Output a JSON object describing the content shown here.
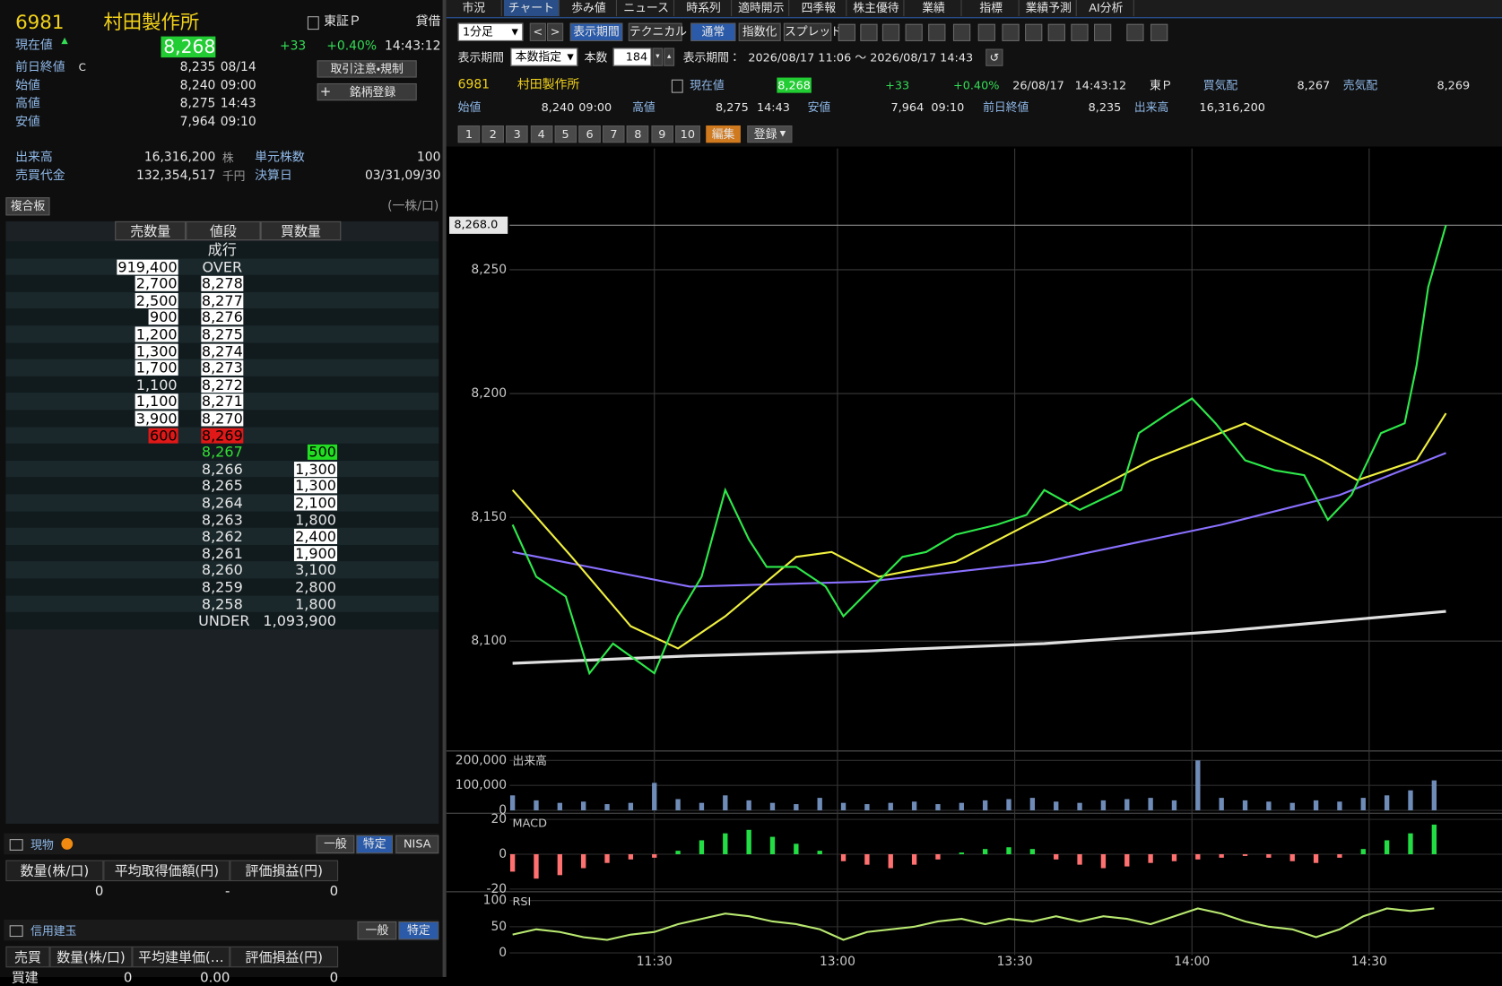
{
  "header": {
    "code": "6981",
    "name": "村田製作所",
    "market": "東証Ｐ",
    "margin_type": "貸借",
    "current_label": "現在値",
    "up_mark": "▲",
    "price": "8,268",
    "change": "+33",
    "change_pct": "+0.40%",
    "time": "14:43:12",
    "rows": [
      {
        "label": "前日終値",
        "flag": "C",
        "value": "8,235",
        "time": "08/14"
      },
      {
        "label": "始値",
        "value": "8,240",
        "time": "09:00"
      },
      {
        "label": "高値",
        "value": "8,275",
        "time": "14:43"
      },
      {
        "label": "安値",
        "value": "7,964",
        "time": "09:10"
      }
    ],
    "buttons": [
      "取引注意・規制",
      "銘柄登録"
    ]
  },
  "stats": {
    "rows": [
      {
        "label": "出来高",
        "value": "16,316,200",
        "unit": "株",
        "label2": "単元株数",
        "value2": "100"
      },
      {
        "label": "売買代金",
        "value": "132,354,517",
        "unit": "千円",
        "label2": "決算日",
        "value2": "03/31,09/30"
      }
    ]
  },
  "board": {
    "tab": "複合板",
    "note": "(一株/口)",
    "headers": [
      "売数量",
      "値段",
      "買数量"
    ],
    "rows": [
      {
        "cells": [
          null,
          "成行",
          null
        ]
      },
      {
        "cells": [
          "919,400",
          "OVER",
          null
        ],
        "bg": [
          "#ffffff",
          null,
          null
        ]
      },
      {
        "cells": [
          "2,700",
          "8,278",
          null
        ],
        "bg": [
          "#ffffff",
          "#ffffff",
          null
        ]
      },
      {
        "cells": [
          "2,500",
          "8,277",
          null
        ],
        "bg": [
          "#ffffff",
          "#ffffff",
          null
        ]
      },
      {
        "cells": [
          "900",
          "8,276",
          null
        ],
        "bg": [
          "#ffffff",
          "#ffffff",
          null
        ]
      },
      {
        "cells": [
          "1,200",
          "8,275",
          null
        ],
        "bg": [
          "#ffffff",
          "#ffffff",
          null
        ]
      },
      {
        "cells": [
          "1,300",
          "8,274",
          null
        ],
        "bg": [
          "#ffffff",
          "#ffffff",
          null
        ]
      },
      {
        "cells": [
          "1,700",
          "8,273",
          null
        ],
        "bg": [
          "#ffffff",
          "#ffffff",
          null
        ]
      },
      {
        "cells": [
          "1,100",
          "8,272",
          null
        ],
        "bg": [
          null,
          "#ffffff",
          null
        ]
      },
      {
        "cells": [
          "1,100",
          "8,271",
          null
        ],
        "bg": [
          "#ffffff",
          "#ffffff",
          null
        ]
      },
      {
        "cells": [
          "3,900",
          "8,270",
          null
        ],
        "bg": [
          "#ffffff",
          "#ffffff",
          null
        ]
      },
      {
        "cells": [
          "600",
          "8,269",
          null
        ],
        "bg": [
          "#e01818",
          "#e01818",
          null
        ]
      },
      {
        "cells": [
          null,
          "8,267",
          "500"
        ],
        "bg": [
          null,
          null,
          "#22dd22"
        ],
        "fg": [
          null,
          "#33dd33",
          null
        ]
      },
      {
        "cells": [
          null,
          "8,266",
          "1,300"
        ],
        "bg": [
          null,
          null,
          "#ffffff"
        ]
      },
      {
        "cells": [
          null,
          "8,265",
          "1,300"
        ],
        "bg": [
          null,
          null,
          "#ffffff"
        ]
      },
      {
        "cells": [
          null,
          "8,264",
          "2,100"
        ],
        "bg": [
          null,
          null,
          "#ffffff"
        ]
      },
      {
        "cells": [
          null,
          "8,263",
          "1,800"
        ]
      },
      {
        "cells": [
          null,
          "8,262",
          "2,400"
        ],
        "bg": [
          null,
          null,
          "#ffffff"
        ]
      },
      {
        "cells": [
          null,
          "8,261",
          "1,900"
        ],
        "bg": [
          null,
          null,
          "#ffffff"
        ]
      },
      {
        "cells": [
          null,
          "8,260",
          "3,100"
        ]
      },
      {
        "cells": [
          null,
          "8,259",
          "2,800"
        ]
      },
      {
        "cells": [
          null,
          "8,258",
          "1,800"
        ]
      },
      {
        "cells": [
          null,
          "UNDER",
          "1,093,900"
        ]
      }
    ]
  },
  "holdings": {
    "title": "現物",
    "tabs": [
      "一般",
      "特定",
      "NISA"
    ],
    "active": 1,
    "headers": [
      "数量(株/口)",
      "平均取得価額(円)",
      "評価損益(円)"
    ],
    "row": [
      "0",
      "-",
      "0"
    ]
  },
  "margin_positions": {
    "title": "信用建玉",
    "tabs": [
      "一般",
      "特定"
    ],
    "active": 1,
    "headers": [
      "売買",
      "数量(株/口)",
      "平均建単価(…",
      "評価損益(円)"
    ],
    "row": [
      "買建",
      "0",
      "0.00",
      "0"
    ]
  },
  "tabs": {
    "items": [
      "市況",
      "チャート",
      "歩み値",
      "ニュース",
      "時系列",
      "適時開示",
      "四季報",
      "株主優待",
      "業績",
      "指標",
      "業績予測",
      "AI分析"
    ],
    "active": 1
  },
  "toolbar": {
    "interval": "1分足",
    "buttons": [
      "表示期間",
      "テクニカル",
      "通常",
      "指数化",
      "スプレッド"
    ],
    "active": [
      0,
      2
    ]
  },
  "period": {
    "label": "表示期間",
    "mode": "本数指定",
    "count_label": "本数",
    "count": "184",
    "range_label": "表示期間：",
    "range": "2026/08/17 11:06 ～ 2026/08/17 14:43"
  },
  "quote": {
    "code": "6981",
    "name": "村田製作所",
    "current_label": "現在値",
    "price": "8,268",
    "change": "+33",
    "change_pct": "+0.40%",
    "date": "26/08/17",
    "time": "14:43:12",
    "market": "東Ｐ",
    "bid_label": "買気配",
    "bid": "8,267",
    "ask_label": "売気配",
    "ask": "8,269",
    "rows": [
      {
        "label": "始値",
        "value": "8,240",
        "time": "09:00"
      },
      {
        "label": "高値",
        "value": "8,275",
        "time": "14:43"
      },
      {
        "label": "安値",
        "value": "7,964",
        "time": "09:10"
      },
      {
        "label": "前日終値",
        "value": "8,235"
      },
      {
        "label": "出来高",
        "value": "16,316,200"
      }
    ]
  },
  "pages": {
    "items": [
      "1",
      "2",
      "3",
      "4",
      "5",
      "6",
      "7",
      "8",
      "9",
      "10"
    ],
    "edit": "編集",
    "register": "登録"
  },
  "chart_data": [
    {
      "type": "line",
      "xlim": [
        -0.5,
        167.5
      ],
      "ylim": [
        8056,
        8299
      ],
      "yticks": [
        {
          "value": 8250,
          "label": "8,250"
        },
        {
          "value": 8200,
          "label": "8,200"
        },
        {
          "value": 8150,
          "label": "8,150"
        },
        {
          "value": 8100,
          "label": "8,100"
        }
      ],
      "xticks": [
        {
          "value": 24,
          "label": "11:30"
        },
        {
          "value": 55,
          "label": "13:00"
        },
        {
          "value": 85,
          "label": "13:30"
        },
        {
          "value": 115,
          "label": "14:00"
        },
        {
          "value": 145,
          "label": "14:30"
        }
      ],
      "current": {
        "value": 8268,
        "label": "8,268.0"
      },
      "grid": true,
      "series": [
        {
          "color": "#e0e0e0",
          "x": [
            0,
            30,
            60,
            90,
            120,
            158
          ],
          "values": [
            8091,
            8094,
            8096,
            8099,
            8104,
            8112
          ]
        },
        {
          "color": "#8a70ff",
          "x": [
            0,
            30,
            60,
            90,
            120,
            140,
            158
          ],
          "values": [
            8136,
            8122,
            8124,
            8132,
            8147,
            8159,
            8176
          ]
        },
        {
          "color": "#f0f040",
          "x": [
            0,
            10,
            20,
            28,
            36,
            48,
            54,
            62,
            75,
            92,
            108,
            124,
            137,
            143,
            153,
            158
          ],
          "values": [
            8161,
            8134,
            8106,
            8097,
            8110,
            8134,
            8136,
            8126,
            8132,
            8153,
            8173,
            8188,
            8173,
            8165,
            8173,
            8192
          ]
        },
        {
          "color": "#2ee84a",
          "x": [
            0,
            4,
            9,
            13,
            17,
            24,
            28,
            32,
            36,
            40,
            43,
            48,
            53,
            56,
            61,
            66,
            70,
            75,
            82,
            87,
            90,
            96,
            103,
            106,
            111,
            115,
            119,
            124,
            129,
            134,
            138,
            142,
            147,
            151,
            153,
            155,
            158
          ],
          "values": [
            8147,
            8126,
            8118,
            8087,
            8099,
            8087,
            8110,
            8126,
            8161,
            8141,
            8130,
            8130,
            8122,
            8110,
            8122,
            8134,
            8136,
            8143,
            8147,
            8151,
            8161,
            8153,
            8161,
            8184,
            8192,
            8198,
            8188,
            8173,
            8169,
            8167,
            8149,
            8159,
            8184,
            8188,
            8211,
            8243,
            8268
          ]
        }
      ]
    },
    {
      "type": "bar",
      "title": "出来高",
      "ylim": [
        0,
        234000
      ],
      "yticks": [
        {
          "value": 200000,
          "label": "200,000"
        },
        {
          "value": 100000,
          "label": "100,000"
        },
        0
      ],
      "color": "#6f8cb8",
      "x": [
        0,
        4,
        8,
        12,
        16,
        20,
        24,
        28,
        32,
        36,
        40,
        44,
        48,
        52,
        56,
        60,
        64,
        68,
        72,
        76,
        80,
        84,
        88,
        92,
        96,
        100,
        104,
        108,
        112,
        116,
        120,
        124,
        128,
        132,
        136,
        140,
        144,
        148,
        152,
        156
      ],
      "values": [
        60000,
        40000,
        30000,
        35000,
        25000,
        30000,
        110000,
        45000,
        30000,
        60000,
        40000,
        30000,
        25000,
        50000,
        30000,
        25000,
        30000,
        35000,
        25000,
        30000,
        40000,
        45000,
        50000,
        35000,
        30000,
        40000,
        45000,
        50000,
        40000,
        200000,
        50000,
        40000,
        35000,
        30000,
        40000,
        35000,
        50000,
        60000,
        80000,
        120000
      ]
    },
    {
      "type": "bar",
      "title": "MACD",
      "ylim": [
        -21,
        23
      ],
      "yticks": [
        20,
        0,
        -20
      ],
      "color": "#22dd44",
      "negative_color": "#ff7070",
      "x": [
        0,
        4,
        8,
        12,
        16,
        20,
        24,
        28,
        32,
        36,
        40,
        44,
        48,
        52,
        56,
        60,
        64,
        68,
        72,
        76,
        80,
        84,
        88,
        92,
        96,
        100,
        104,
        108,
        112,
        116,
        120,
        124,
        128,
        132,
        136,
        140,
        144,
        148,
        152,
        156
      ],
      "values": [
        -10,
        -14,
        -12,
        -8,
        -5,
        -3,
        -2,
        2,
        8,
        12,
        14,
        10,
        6,
        2,
        -4,
        -6,
        -8,
        -6,
        -3,
        1,
        3,
        4,
        3,
        -3,
        -6,
        -8,
        -7,
        -5,
        -4,
        -3,
        -2,
        -1,
        -2,
        -4,
        -5,
        -2,
        3,
        8,
        12,
        17
      ]
    },
    {
      "type": "line",
      "title": "RSI",
      "ylim": [
        -4,
        115
      ],
      "yticks": [
        100,
        50,
        0
      ],
      "series": [
        {
          "color": "#b8e870",
          "x": [
            0,
            4,
            8,
            12,
            16,
            20,
            24,
            28,
            32,
            36,
            40,
            44,
            48,
            52,
            56,
            60,
            64,
            68,
            72,
            76,
            80,
            84,
            88,
            92,
            96,
            100,
            104,
            108,
            112,
            116,
            120,
            124,
            128,
            132,
            136,
            140,
            144,
            148,
            152,
            156
          ],
          "values": [
            35,
            45,
            40,
            30,
            25,
            35,
            40,
            55,
            65,
            75,
            70,
            60,
            55,
            45,
            25,
            40,
            45,
            50,
            60,
            65,
            55,
            65,
            60,
            70,
            60,
            70,
            65,
            55,
            70,
            85,
            75,
            60,
            50,
            45,
            30,
            45,
            70,
            85,
            80,
            85
          ]
        }
      ]
    }
  ]
}
